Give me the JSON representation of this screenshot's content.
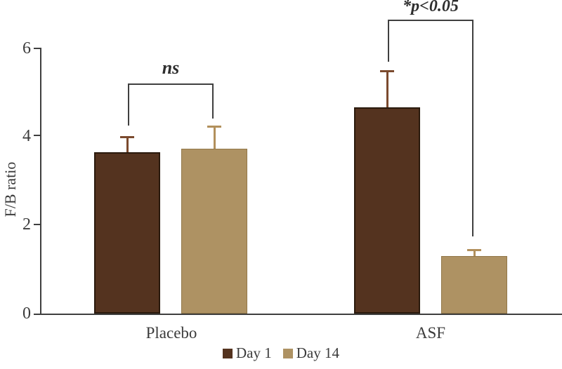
{
  "figure_title": "",
  "chart_data": {
    "type": "bar",
    "categories": [
      "Placebo",
      "ASF"
    ],
    "series": [
      {
        "name": "Day 1",
        "color": "#54331f",
        "border_color": "#2a1a0d",
        "error_color": "#7b4a2e",
        "values": [
          3.65,
          4.67
        ],
        "errors": [
          0.37,
          0.83
        ]
      },
      {
        "name": "Day 14",
        "color": "#ae9263",
        "border_color": "#927748",
        "error_color": "#b2905c",
        "values": [
          3.73,
          1.31
        ],
        "errors": [
          0.52,
          0.16
        ]
      }
    ],
    "ylabel": "F/B ratio",
    "xlabel": "",
    "ylim": [
      0,
      6
    ],
    "yticks": [
      0,
      2,
      4,
      6
    ],
    "grid": false,
    "legend_position": "bottom",
    "error_bars": "upper only",
    "annotations": [
      {
        "text": "ns",
        "between": [
          "Placebo Day 1",
          "Placebo Day 14"
        ],
        "style": "italic"
      },
      {
        "text": "*p<0.05",
        "between": [
          "ASF Day 1",
          "ASF Day 14"
        ],
        "style": "bold italic"
      }
    ],
    "axis_color": "#3f3f3f"
  }
}
